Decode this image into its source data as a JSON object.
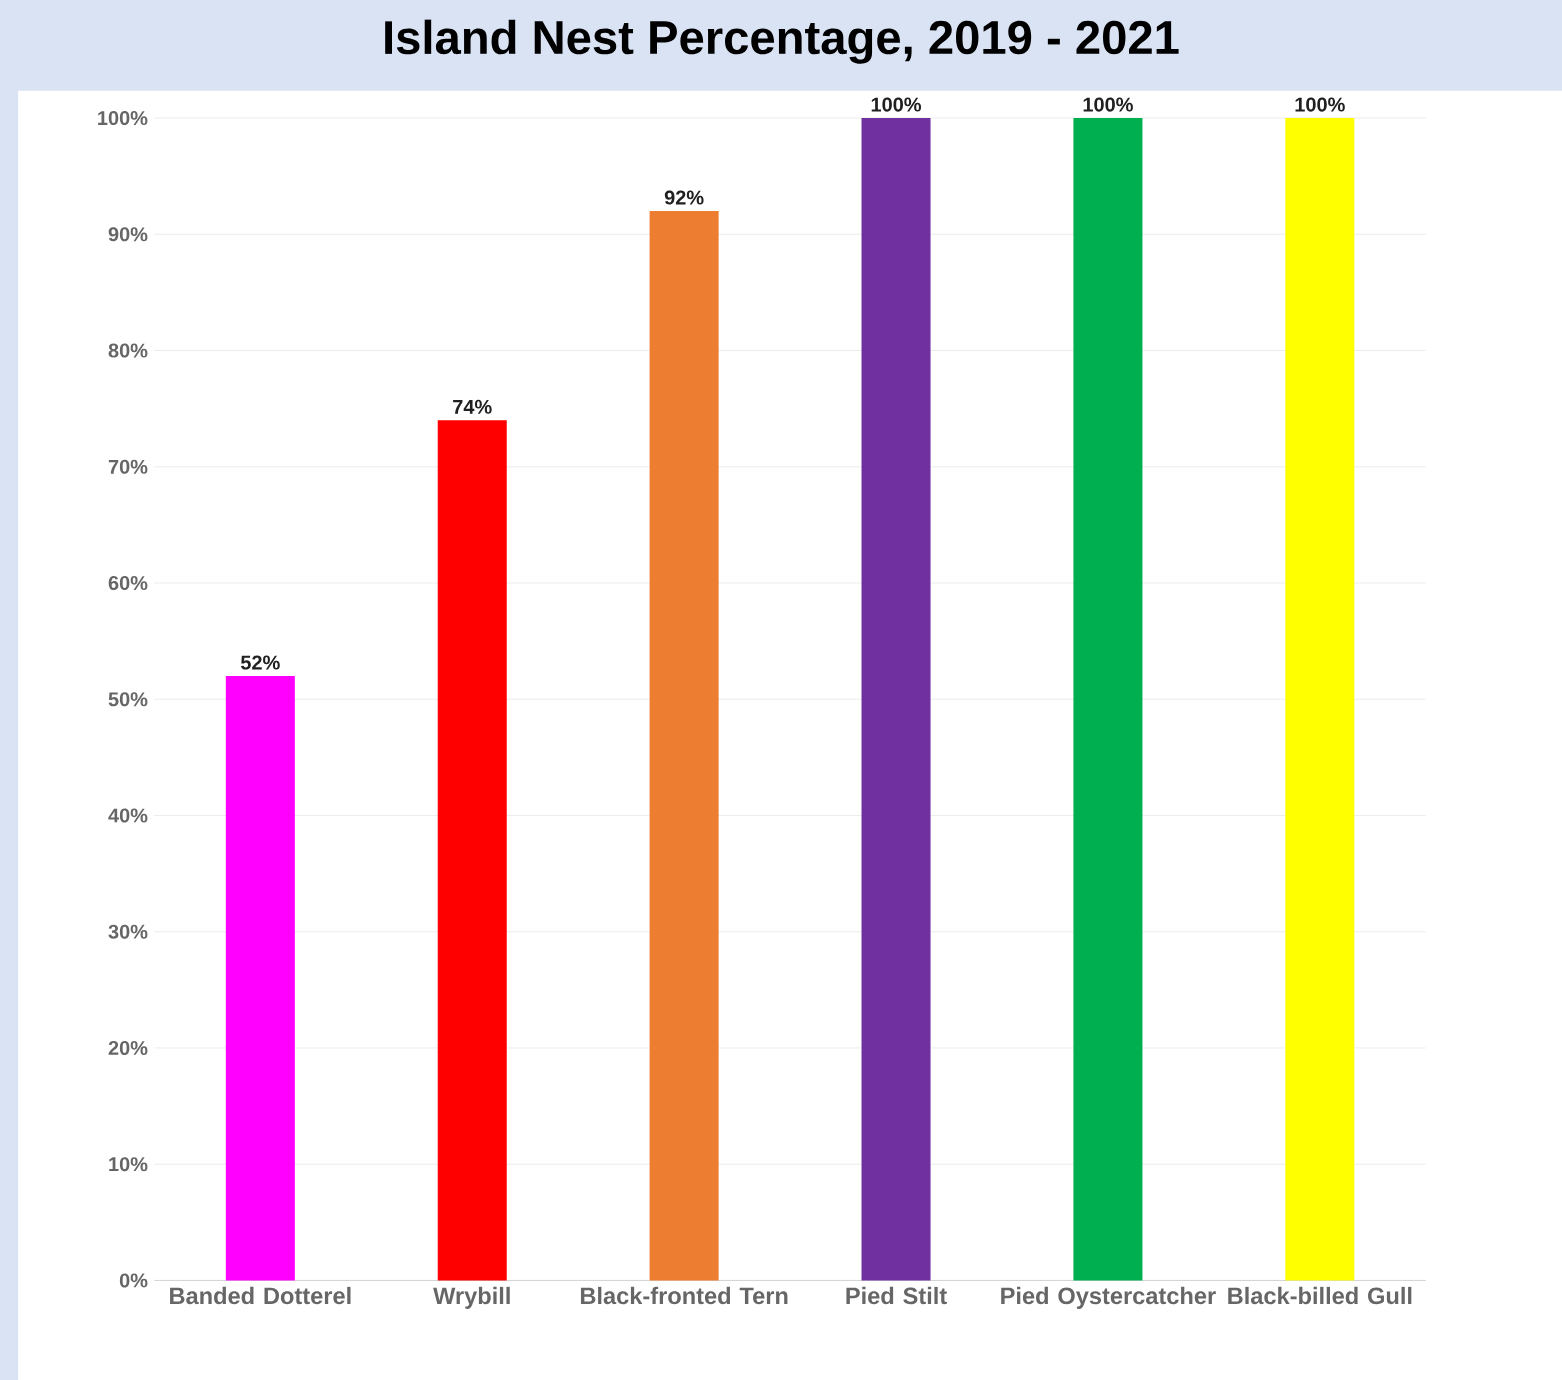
{
  "chart_data": {
    "type": "bar",
    "title": "Island Nest Percentage, 2019 - 2021",
    "categories": [
      "Banded Dotterel",
      "Wrybill",
      "Black-fronted Tern",
      "Pied Stilt",
      "Pied Oystercatcher",
      "Black-billed Gull"
    ],
    "values": [
      52,
      74,
      92,
      100,
      100,
      100
    ],
    "value_labels": [
      "52%",
      "74%",
      "92%",
      "100%",
      "100%",
      "100%"
    ],
    "colors": [
      "#ff00ff",
      "#ff0000",
      "#ed7d31",
      "#7030a0",
      "#00b050",
      "#ffff00"
    ],
    "ylim": [
      0,
      100
    ],
    "yticks": [
      {
        "value": 0,
        "label": "0%"
      },
      {
        "value": 10,
        "label": "10%"
      },
      {
        "value": 20,
        "label": "20%"
      },
      {
        "value": 30,
        "label": "30%"
      },
      {
        "value": 40,
        "label": "40%"
      },
      {
        "value": 50,
        "label": "50%"
      },
      {
        "value": 60,
        "label": "60%"
      },
      {
        "value": 70,
        "label": "70%"
      },
      {
        "value": 80,
        "label": "80%"
      },
      {
        "value": 90,
        "label": "90%"
      },
      {
        "value": 100,
        "label": "100%"
      }
    ],
    "grid": "y"
  }
}
